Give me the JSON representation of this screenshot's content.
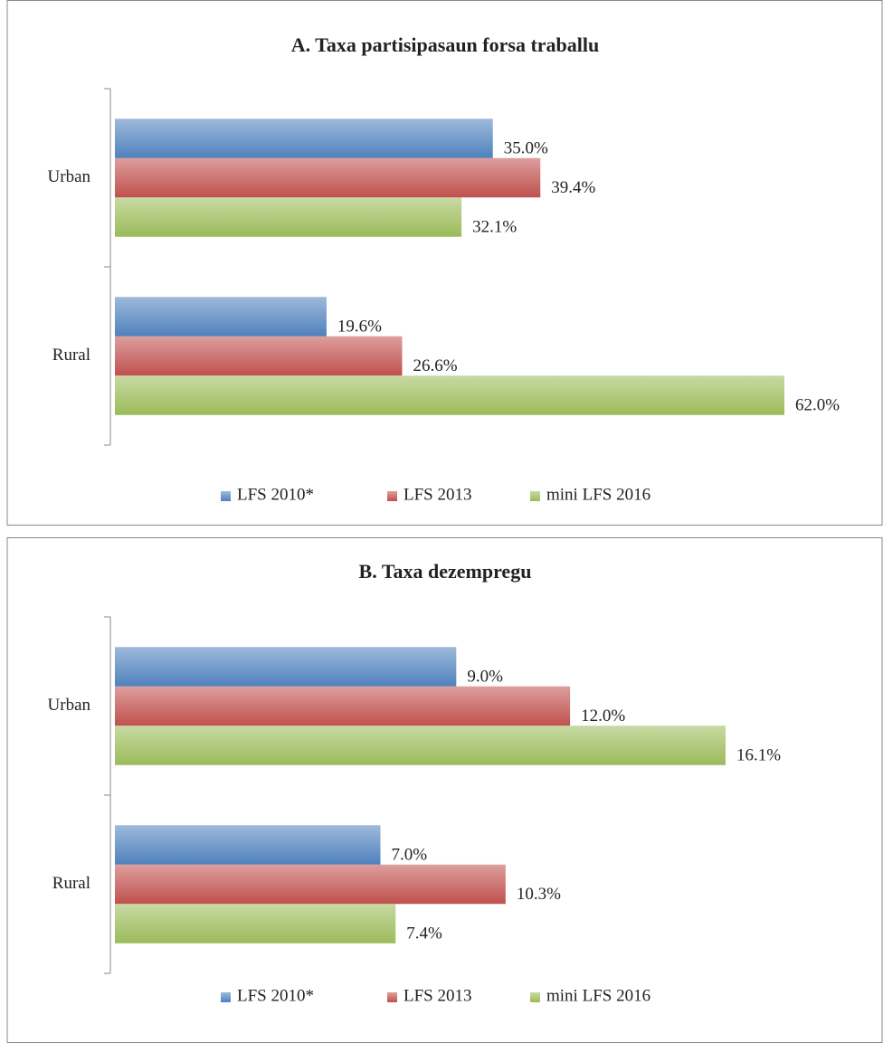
{
  "chart_data": [
    {
      "type": "bar",
      "orientation": "horizontal",
      "title": "A. Taxa partisipasaun forsa traballu",
      "categories": [
        "Urban",
        "Rural"
      ],
      "series": [
        {
          "name": "LFS 2010*",
          "color": "#4f81bd",
          "values": [
            35.0,
            19.6
          ],
          "value_labels": [
            "35.0%",
            "19.6%"
          ]
        },
        {
          "name": "LFS 2013",
          "color": "#c0504d",
          "values": [
            39.4,
            26.6
          ],
          "value_labels": [
            "39.4%",
            "26.6%"
          ]
        },
        {
          "name": "mini LFS 2016",
          "color": "#9bbb59",
          "values": [
            32.1,
            62.0
          ],
          "value_labels": [
            "32.1%",
            "62.0%"
          ]
        }
      ],
      "legend": "bottom"
    },
    {
      "type": "bar",
      "orientation": "horizontal",
      "title": "B. Taxa dezempregu",
      "categories": [
        "Urban",
        "Rural"
      ],
      "series": [
        {
          "name": "LFS 2010*",
          "color": "#4f81bd",
          "values": [
            9.0,
            7.0
          ],
          "value_labels": [
            "9.0%",
            "7.0%"
          ]
        },
        {
          "name": "LFS 2013",
          "color": "#c0504d",
          "values": [
            12.0,
            10.3
          ],
          "value_labels": [
            "12.0%",
            "10.3%"
          ]
        },
        {
          "name": "mini LFS 2016",
          "color": "#9bbb59",
          "values": [
            16.1,
            7.4
          ],
          "value_labels": [
            "16.1%",
            "7.4%"
          ]
        }
      ],
      "legend": "bottom"
    }
  ]
}
